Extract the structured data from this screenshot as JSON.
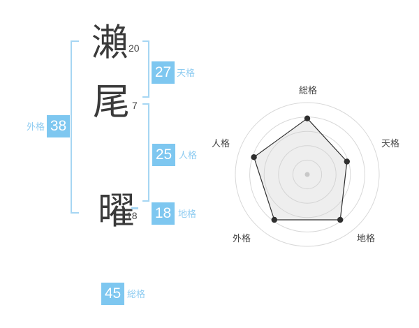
{
  "page": {
    "background": "#ffffff"
  },
  "name": {
    "characters": [
      {
        "char": "瀨",
        "strokes": "20"
      },
      {
        "char": "尾",
        "strokes": "7"
      },
      {
        "char": "曜",
        "strokes": "18"
      }
    ]
  },
  "kaku": {
    "tenkaku": {
      "label": "天格",
      "value": "27"
    },
    "jinkaku": {
      "label": "人格",
      "value": "25"
    },
    "chikaku": {
      "label": "地格",
      "value": "18"
    },
    "gaikaku": {
      "label": "外格",
      "value": "38"
    },
    "soukaku": {
      "label": "総格",
      "value": "45"
    }
  },
  "colors": {
    "badge_bg": "#7ec7f0",
    "label_blue": "#8fccf1",
    "bracket_blue": "#a6d6f3",
    "text_dark": "#3a3a3a",
    "radar_ring": "#d8d8d8",
    "radar_line": "#2f2f2f",
    "radar_fill": "#cfcfcf",
    "radar_center_dot": "#c8c8c8"
  },
  "chart_data": {
    "type": "radar",
    "axes": [
      "総格",
      "天格",
      "地格",
      "外格",
      "人格"
    ],
    "values": [
      3.9,
      2.9,
      3.9,
      3.9,
      3.9
    ],
    "max": 5,
    "rings": 5,
    "grid": "concentric-circles",
    "legend": "none",
    "center_marker": true
  }
}
